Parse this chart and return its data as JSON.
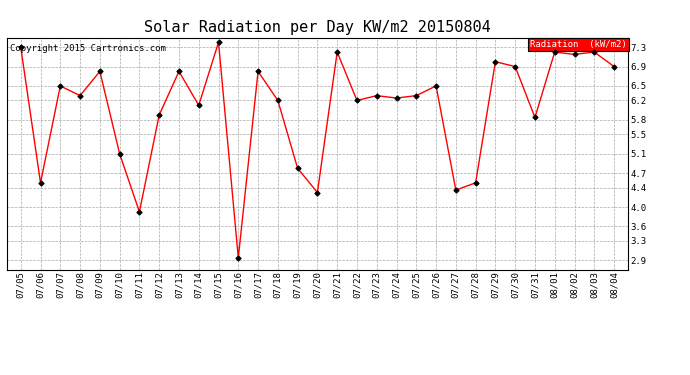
{
  "title": "Solar Radiation per Day KW/m2 20150804",
  "copyright": "Copyright 2015 Cartronics.com",
  "legend_label": "Radiation  (kW/m2)",
  "dates": [
    "07/05",
    "07/06",
    "07/07",
    "07/08",
    "07/09",
    "07/10",
    "07/11",
    "07/12",
    "07/13",
    "07/14",
    "07/15",
    "07/16",
    "07/17",
    "07/18",
    "07/19",
    "07/20",
    "07/21",
    "07/22",
    "07/23",
    "07/24",
    "07/25",
    "07/26",
    "07/27",
    "07/28",
    "07/29",
    "07/30",
    "07/31",
    "08/01",
    "08/02",
    "08/03",
    "08/04"
  ],
  "values": [
    7.3,
    4.5,
    6.5,
    6.3,
    6.8,
    5.1,
    3.9,
    5.9,
    6.8,
    6.1,
    7.4,
    2.95,
    6.8,
    6.2,
    4.8,
    4.3,
    7.2,
    6.2,
    6.3,
    6.25,
    6.3,
    6.5,
    4.35,
    4.5,
    7.0,
    6.9,
    5.85,
    7.2,
    7.15,
    7.2,
    6.9
  ],
  "yticks": [
    2.9,
    3.3,
    3.6,
    4.0,
    4.4,
    4.7,
    5.1,
    5.5,
    5.8,
    6.2,
    6.5,
    6.9,
    7.3
  ],
  "ylim": [
    2.7,
    7.5
  ],
  "line_color": "red",
  "marker_color": "black",
  "grid_color": "#aaaaaa",
  "background_color": "#ffffff",
  "legend_bg": "red",
  "legend_text_color": "white",
  "title_fontsize": 11,
  "tick_fontsize": 6.5,
  "copyright_fontsize": 6.5
}
